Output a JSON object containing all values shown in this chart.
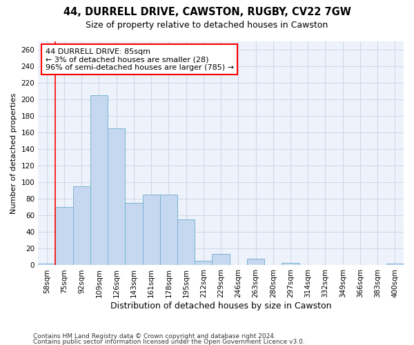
{
  "title1": "44, DURRELL DRIVE, CAWSTON, RUGBY, CV22 7GW",
  "title2": "Size of property relative to detached houses in Cawston",
  "xlabel": "Distribution of detached houses by size in Cawston",
  "ylabel": "Number of detached properties",
  "categories": [
    "58sqm",
    "75sqm",
    "92sqm",
    "109sqm",
    "126sqm",
    "143sqm",
    "161sqm",
    "178sqm",
    "195sqm",
    "212sqm",
    "229sqm",
    "246sqm",
    "263sqm",
    "280sqm",
    "297sqm",
    "314sqm",
    "332sqm",
    "349sqm",
    "366sqm",
    "383sqm",
    "400sqm"
  ],
  "values": [
    2,
    70,
    95,
    205,
    165,
    75,
    85,
    85,
    55,
    5,
    14,
    0,
    8,
    0,
    3,
    0,
    0,
    0,
    0,
    0,
    2
  ],
  "bar_color": "#c5d8f0",
  "bar_edge_color": "#7ab4d4",
  "red_line_x": 0.5,
  "annotation_text": "44 DURRELL DRIVE: 85sqm\n← 3% of detached houses are smaller (28)\n96% of semi-detached houses are larger (785) →",
  "annotation_box_color": "white",
  "annotation_box_edge_color": "red",
  "red_line_color": "red",
  "background_color": "#eef2fa",
  "grid_color": "#d0d8e8",
  "footnote1": "Contains HM Land Registry data © Crown copyright and database right 2024.",
  "footnote2": "Contains public sector information licensed under the Open Government Licence v3.0.",
  "ylim": [
    0,
    270
  ],
  "yticks": [
    0,
    20,
    40,
    60,
    80,
    100,
    120,
    140,
    160,
    180,
    200,
    220,
    240,
    260
  ],
  "title1_fontsize": 10.5,
  "title2_fontsize": 9,
  "xlabel_fontsize": 9,
  "ylabel_fontsize": 8,
  "tick_fontsize": 7.5,
  "annot_fontsize": 8,
  "footnote_fontsize": 6.5
}
